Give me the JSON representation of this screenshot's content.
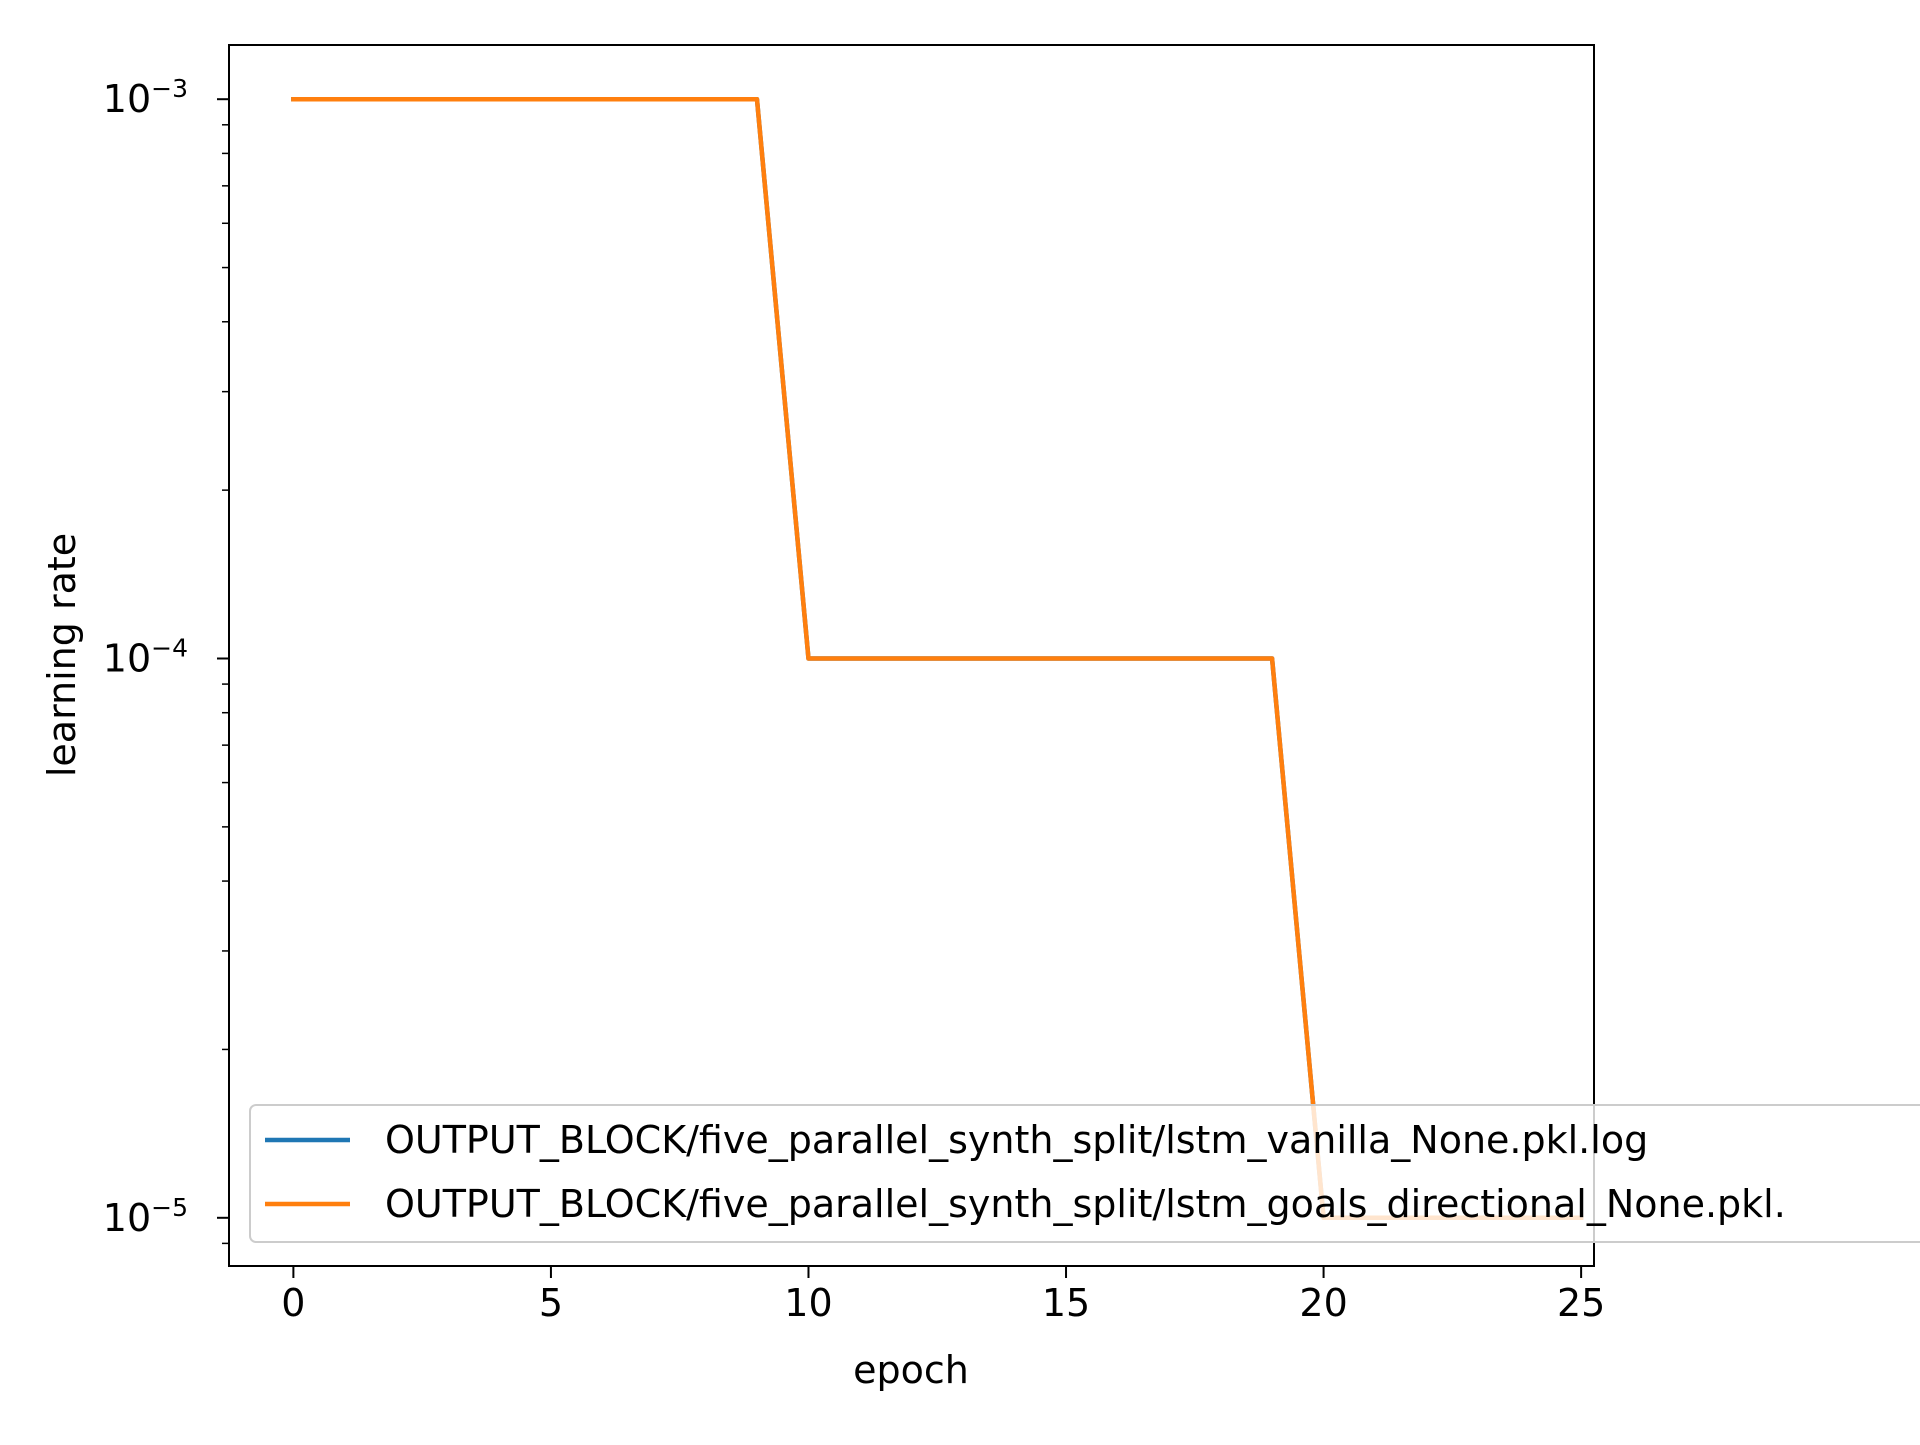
{
  "chart_data": {
    "type": "line",
    "xlabel": "epoch",
    "ylabel": "learning rate",
    "yscale": "log",
    "xlim": [
      -1.25,
      25.25
    ],
    "ylim": [
      8.2e-06,
      0.00125
    ],
    "xticks": [
      0,
      5,
      10,
      15,
      20,
      25
    ],
    "yticks": [
      {
        "value": 0.001,
        "base": "10",
        "exponent": "−3"
      },
      {
        "value": 0.0001,
        "base": "10",
        "exponent": "−4"
      },
      {
        "value": 1e-05,
        "base": "10",
        "exponent": "−5"
      }
    ],
    "grid": false,
    "legend_position": "lower-right",
    "series": [
      {
        "name": "OUTPUT_BLOCK/five_parallel_synth_split/lstm_vanilla_None.pkl.log",
        "color": "#1f77b4",
        "x": [
          0,
          1,
          2,
          3,
          4,
          5,
          6,
          7,
          8,
          9,
          10,
          11,
          12,
          13,
          14,
          15,
          16,
          17,
          18,
          19,
          20,
          21,
          22,
          23,
          24,
          25
        ],
        "y": [
          0.001,
          0.001,
          0.001,
          0.001,
          0.001,
          0.001,
          0.001,
          0.001,
          0.001,
          0.001,
          0.0001,
          0.0001,
          0.0001,
          0.0001,
          0.0001,
          0.0001,
          0.0001,
          0.0001,
          0.0001,
          0.0001,
          1e-05,
          1e-05,
          1e-05,
          1e-05,
          1e-05,
          1e-05
        ]
      },
      {
        "name": "OUTPUT_BLOCK/five_parallel_synth_split/lstm_goals_directional_None.pkl.",
        "color": "#ff7f0e",
        "x": [
          0,
          1,
          2,
          3,
          4,
          5,
          6,
          7,
          8,
          9,
          10,
          11,
          12,
          13,
          14,
          15,
          16,
          17,
          18,
          19,
          20,
          21,
          22,
          23,
          24,
          25
        ],
        "y": [
          0.001,
          0.001,
          0.001,
          0.001,
          0.001,
          0.001,
          0.001,
          0.001,
          0.001,
          0.001,
          0.0001,
          0.0001,
          0.0001,
          0.0001,
          0.0001,
          0.0001,
          0.0001,
          0.0001,
          0.0001,
          0.0001,
          1e-05,
          1e-05,
          1e-05,
          1e-05,
          1e-05,
          1e-05
        ]
      }
    ]
  }
}
